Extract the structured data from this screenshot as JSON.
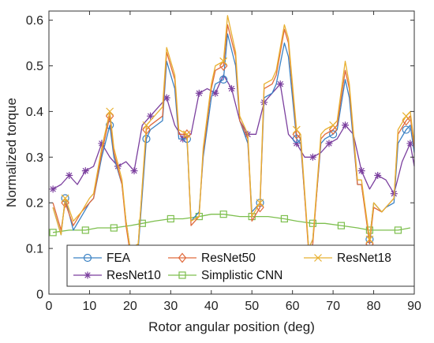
{
  "chart_data": {
    "type": "line",
    "title": "",
    "xlabel": "Rotor angular position (deg)",
    "ylabel": "Normalized torque",
    "xlim": [
      0,
      90
    ],
    "ylim": [
      0,
      0.62
    ],
    "x_ticks": [
      0,
      10,
      20,
      30,
      40,
      50,
      60,
      70,
      80,
      90
    ],
    "y_ticks": [
      0,
      0.1,
      0.2,
      0.3,
      0.4,
      0.5,
      0.6
    ],
    "grid": false,
    "legend_position": "bottom",
    "series": [
      {
        "name": "FEA",
        "color": "#3b82c4",
        "marker": "circle",
        "x": [
          1,
          3,
          4,
          6,
          8,
          10,
          11,
          13,
          15,
          16,
          18,
          19,
          20,
          22,
          24,
          25,
          28,
          29,
          31,
          32,
          34,
          35,
          37,
          38,
          40,
          41,
          43,
          44,
          46,
          47,
          49,
          50,
          52,
          53,
          55,
          56,
          58,
          59,
          61,
          62,
          64,
          65,
          67,
          68,
          70,
          71,
          73,
          74,
          76,
          77,
          79,
          80,
          82,
          83,
          85,
          86,
          88,
          89,
          90
        ],
        "y": [
          0.19,
          0.13,
          0.21,
          0.14,
          0.17,
          0.2,
          0.21,
          0.3,
          0.37,
          0.3,
          0.24,
          0.16,
          0.1,
          0.1,
          0.34,
          0.36,
          0.38,
          0.51,
          0.45,
          0.34,
          0.34,
          0.16,
          0.18,
          0.3,
          0.43,
          0.46,
          0.47,
          0.57,
          0.5,
          0.38,
          0.33,
          0.18,
          0.2,
          0.43,
          0.44,
          0.46,
          0.55,
          0.52,
          0.34,
          0.33,
          0.1,
          0.12,
          0.33,
          0.34,
          0.35,
          0.36,
          0.47,
          0.43,
          0.24,
          0.24,
          0.12,
          0.2,
          0.18,
          0.19,
          0.2,
          0.33,
          0.36,
          0.37,
          0.31
        ]
      },
      {
        "name": "ResNet50",
        "color": "#e06a3c",
        "marker": "diamond",
        "x": [
          1,
          3,
          4,
          6,
          8,
          10,
          11,
          13,
          15,
          16,
          18,
          19,
          20,
          22,
          24,
          25,
          28,
          29,
          31,
          32,
          34,
          35,
          37,
          38,
          40,
          41,
          43,
          44,
          46,
          47,
          49,
          50,
          52,
          53,
          55,
          56,
          58,
          59,
          61,
          62,
          64,
          65,
          67,
          68,
          70,
          71,
          73,
          74,
          76,
          77,
          79,
          80,
          82,
          83,
          85,
          86,
          88,
          89,
          90
        ],
        "y": [
          0.2,
          0.14,
          0.2,
          0.15,
          0.18,
          0.2,
          0.21,
          0.31,
          0.39,
          0.31,
          0.24,
          0.15,
          0.09,
          0.11,
          0.36,
          0.37,
          0.39,
          0.53,
          0.47,
          0.35,
          0.35,
          0.15,
          0.17,
          0.31,
          0.45,
          0.49,
          0.5,
          0.59,
          0.52,
          0.38,
          0.34,
          0.16,
          0.19,
          0.45,
          0.46,
          0.48,
          0.58,
          0.55,
          0.35,
          0.34,
          0.09,
          0.11,
          0.34,
          0.35,
          0.36,
          0.37,
          0.49,
          0.45,
          0.24,
          0.24,
          0.11,
          0.19,
          0.18,
          0.19,
          0.21,
          0.35,
          0.38,
          0.39,
          0.32
        ]
      },
      {
        "name": "ResNet18",
        "color": "#e8b030",
        "marker": "x",
        "x": [
          1,
          3,
          4,
          6,
          8,
          10,
          11,
          13,
          15,
          16,
          18,
          19,
          20,
          22,
          24,
          25,
          28,
          29,
          31,
          32,
          34,
          35,
          37,
          38,
          40,
          41,
          43,
          44,
          46,
          47,
          49,
          50,
          52,
          53,
          55,
          56,
          58,
          59,
          61,
          62,
          64,
          65,
          67,
          68,
          70,
          71,
          73,
          74,
          76,
          77,
          79,
          80,
          82,
          83,
          85,
          86,
          88,
          89,
          90
        ],
        "y": [
          0.19,
          0.13,
          0.21,
          0.16,
          0.18,
          0.21,
          0.22,
          0.32,
          0.4,
          0.32,
          0.25,
          0.16,
          0.1,
          0.11,
          0.37,
          0.38,
          0.41,
          0.54,
          0.48,
          0.36,
          0.35,
          0.16,
          0.17,
          0.32,
          0.46,
          0.5,
          0.51,
          0.61,
          0.53,
          0.39,
          0.35,
          0.17,
          0.2,
          0.46,
          0.47,
          0.49,
          0.59,
          0.56,
          0.36,
          0.35,
          0.1,
          0.12,
          0.35,
          0.36,
          0.37,
          0.38,
          0.51,
          0.46,
          0.25,
          0.25,
          0.12,
          0.2,
          0.18,
          0.19,
          0.21,
          0.36,
          0.39,
          0.4,
          0.33
        ]
      },
      {
        "name": "ResNet10",
        "color": "#7b3f9e",
        "marker": "star",
        "x": [
          1,
          3,
          5,
          7,
          9,
          11,
          13,
          15,
          17,
          19,
          21,
          23,
          25,
          27,
          29,
          31,
          33,
          35,
          37,
          39,
          41,
          43,
          45,
          47,
          49,
          51,
          53,
          55,
          57,
          59,
          61,
          63,
          65,
          67,
          69,
          71,
          73,
          75,
          77,
          79,
          81,
          83,
          85,
          87,
          89,
          90
        ],
        "y": [
          0.23,
          0.24,
          0.26,
          0.24,
          0.27,
          0.28,
          0.33,
          0.3,
          0.28,
          0.29,
          0.27,
          0.37,
          0.39,
          0.41,
          0.43,
          0.37,
          0.34,
          0.35,
          0.44,
          0.45,
          0.44,
          0.48,
          0.45,
          0.38,
          0.35,
          0.35,
          0.42,
          0.44,
          0.46,
          0.35,
          0.33,
          0.3,
          0.3,
          0.31,
          0.33,
          0.34,
          0.37,
          0.35,
          0.27,
          0.23,
          0.26,
          0.25,
          0.22,
          0.29,
          0.33,
          0.28
        ]
      },
      {
        "name": "Simplistic CNN",
        "color": "#7dbf4e",
        "marker": "square",
        "x": [
          1,
          5,
          9,
          12,
          16,
          20,
          23,
          26,
          30,
          33,
          37,
          40,
          43,
          47,
          50,
          54,
          58,
          61,
          65,
          68,
          72,
          76,
          79,
          83,
          86,
          89
        ],
        "y": [
          0.135,
          0.14,
          0.14,
          0.145,
          0.145,
          0.15,
          0.155,
          0.16,
          0.165,
          0.165,
          0.17,
          0.175,
          0.175,
          0.17,
          0.17,
          0.17,
          0.165,
          0.16,
          0.155,
          0.155,
          0.15,
          0.145,
          0.14,
          0.14,
          0.14,
          0.145
        ]
      }
    ]
  }
}
